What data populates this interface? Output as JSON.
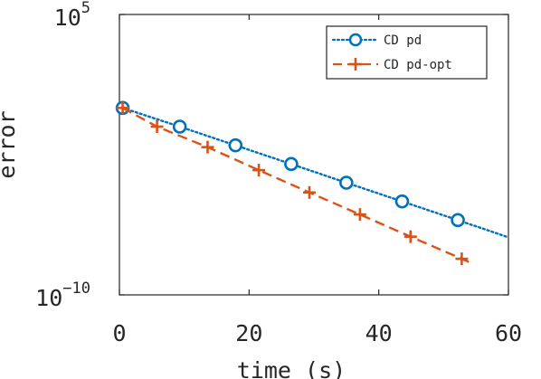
{
  "chart_data": {
    "type": "line",
    "xlabel": "time (s)",
    "ylabel": "error",
    "x_ticks": [
      "0",
      "20",
      "40",
      "60"
    ],
    "y_ticks": [
      {
        "base": "10",
        "exp": "5"
      },
      {
        "base": "10",
        "exp": "−10"
      }
    ],
    "xlim": [
      0,
      60
    ],
    "ylim": [
      1e-10,
      100000.0
    ],
    "y_scale": "log",
    "grid": false,
    "legend_position": "top-right",
    "series": [
      {
        "name": "CD pd",
        "color": "#0072BD",
        "line_style": "dotted",
        "marker": "circle",
        "x": [
          0.5,
          9.3,
          17.9,
          26.5,
          35.0,
          43.6,
          52.2
        ],
        "y": [
          1.0,
          0.1,
          0.01,
          0.001,
          0.0001,
          1e-05,
          1e-06
        ],
        "line_end": {
          "x": 60,
          "y": 1.2e-07
        }
      },
      {
        "name": "CD pd-opt",
        "color": "#D95319",
        "line_style": "dashed",
        "marker": "plus",
        "x": [
          0.5,
          5.8,
          13.6,
          21.5,
          29.3,
          37.1,
          44.9,
          52.8
        ],
        "y": [
          1.0,
          0.1,
          0.008,
          0.00047,
          3e-05,
          2e-06,
          1.3e-07,
          8.5e-09
        ],
        "line_end": {
          "x": 54.0,
          "y": 5.5e-09
        }
      }
    ]
  }
}
